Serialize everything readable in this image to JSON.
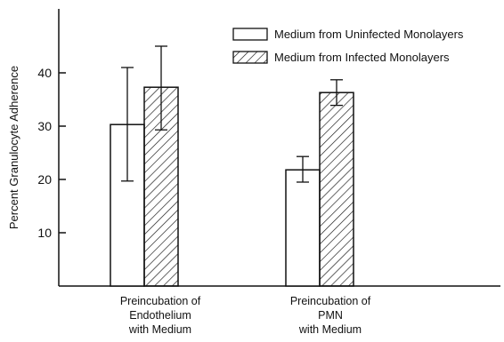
{
  "chart_data": {
    "type": "bar",
    "title": "",
    "xlabel": "",
    "ylabel": "Percent Granulocyte Adherence",
    "ylim": [
      0,
      50
    ],
    "yticks": [
      10,
      20,
      30,
      40
    ],
    "grid": false,
    "legend_position": "top-right",
    "categories": [
      [
        "Preincubation of",
        "Endothelium",
        "with Medium"
      ],
      [
        "Preincubation of",
        "PMN",
        "with Medium"
      ]
    ],
    "series": [
      {
        "name": "Medium from Uninfected Monolayers",
        "fill": "open",
        "values": [
          30.3,
          21.8
        ],
        "error_low": [
          19.7,
          19.5
        ],
        "error_high": [
          41.0,
          24.3
        ]
      },
      {
        "name": "Medium from Infected Monolayers",
        "fill": "hatched",
        "values": [
          37.3,
          36.3
        ],
        "error_low": [
          29.3,
          33.9
        ],
        "error_high": [
          45.0,
          38.7
        ]
      }
    ]
  }
}
